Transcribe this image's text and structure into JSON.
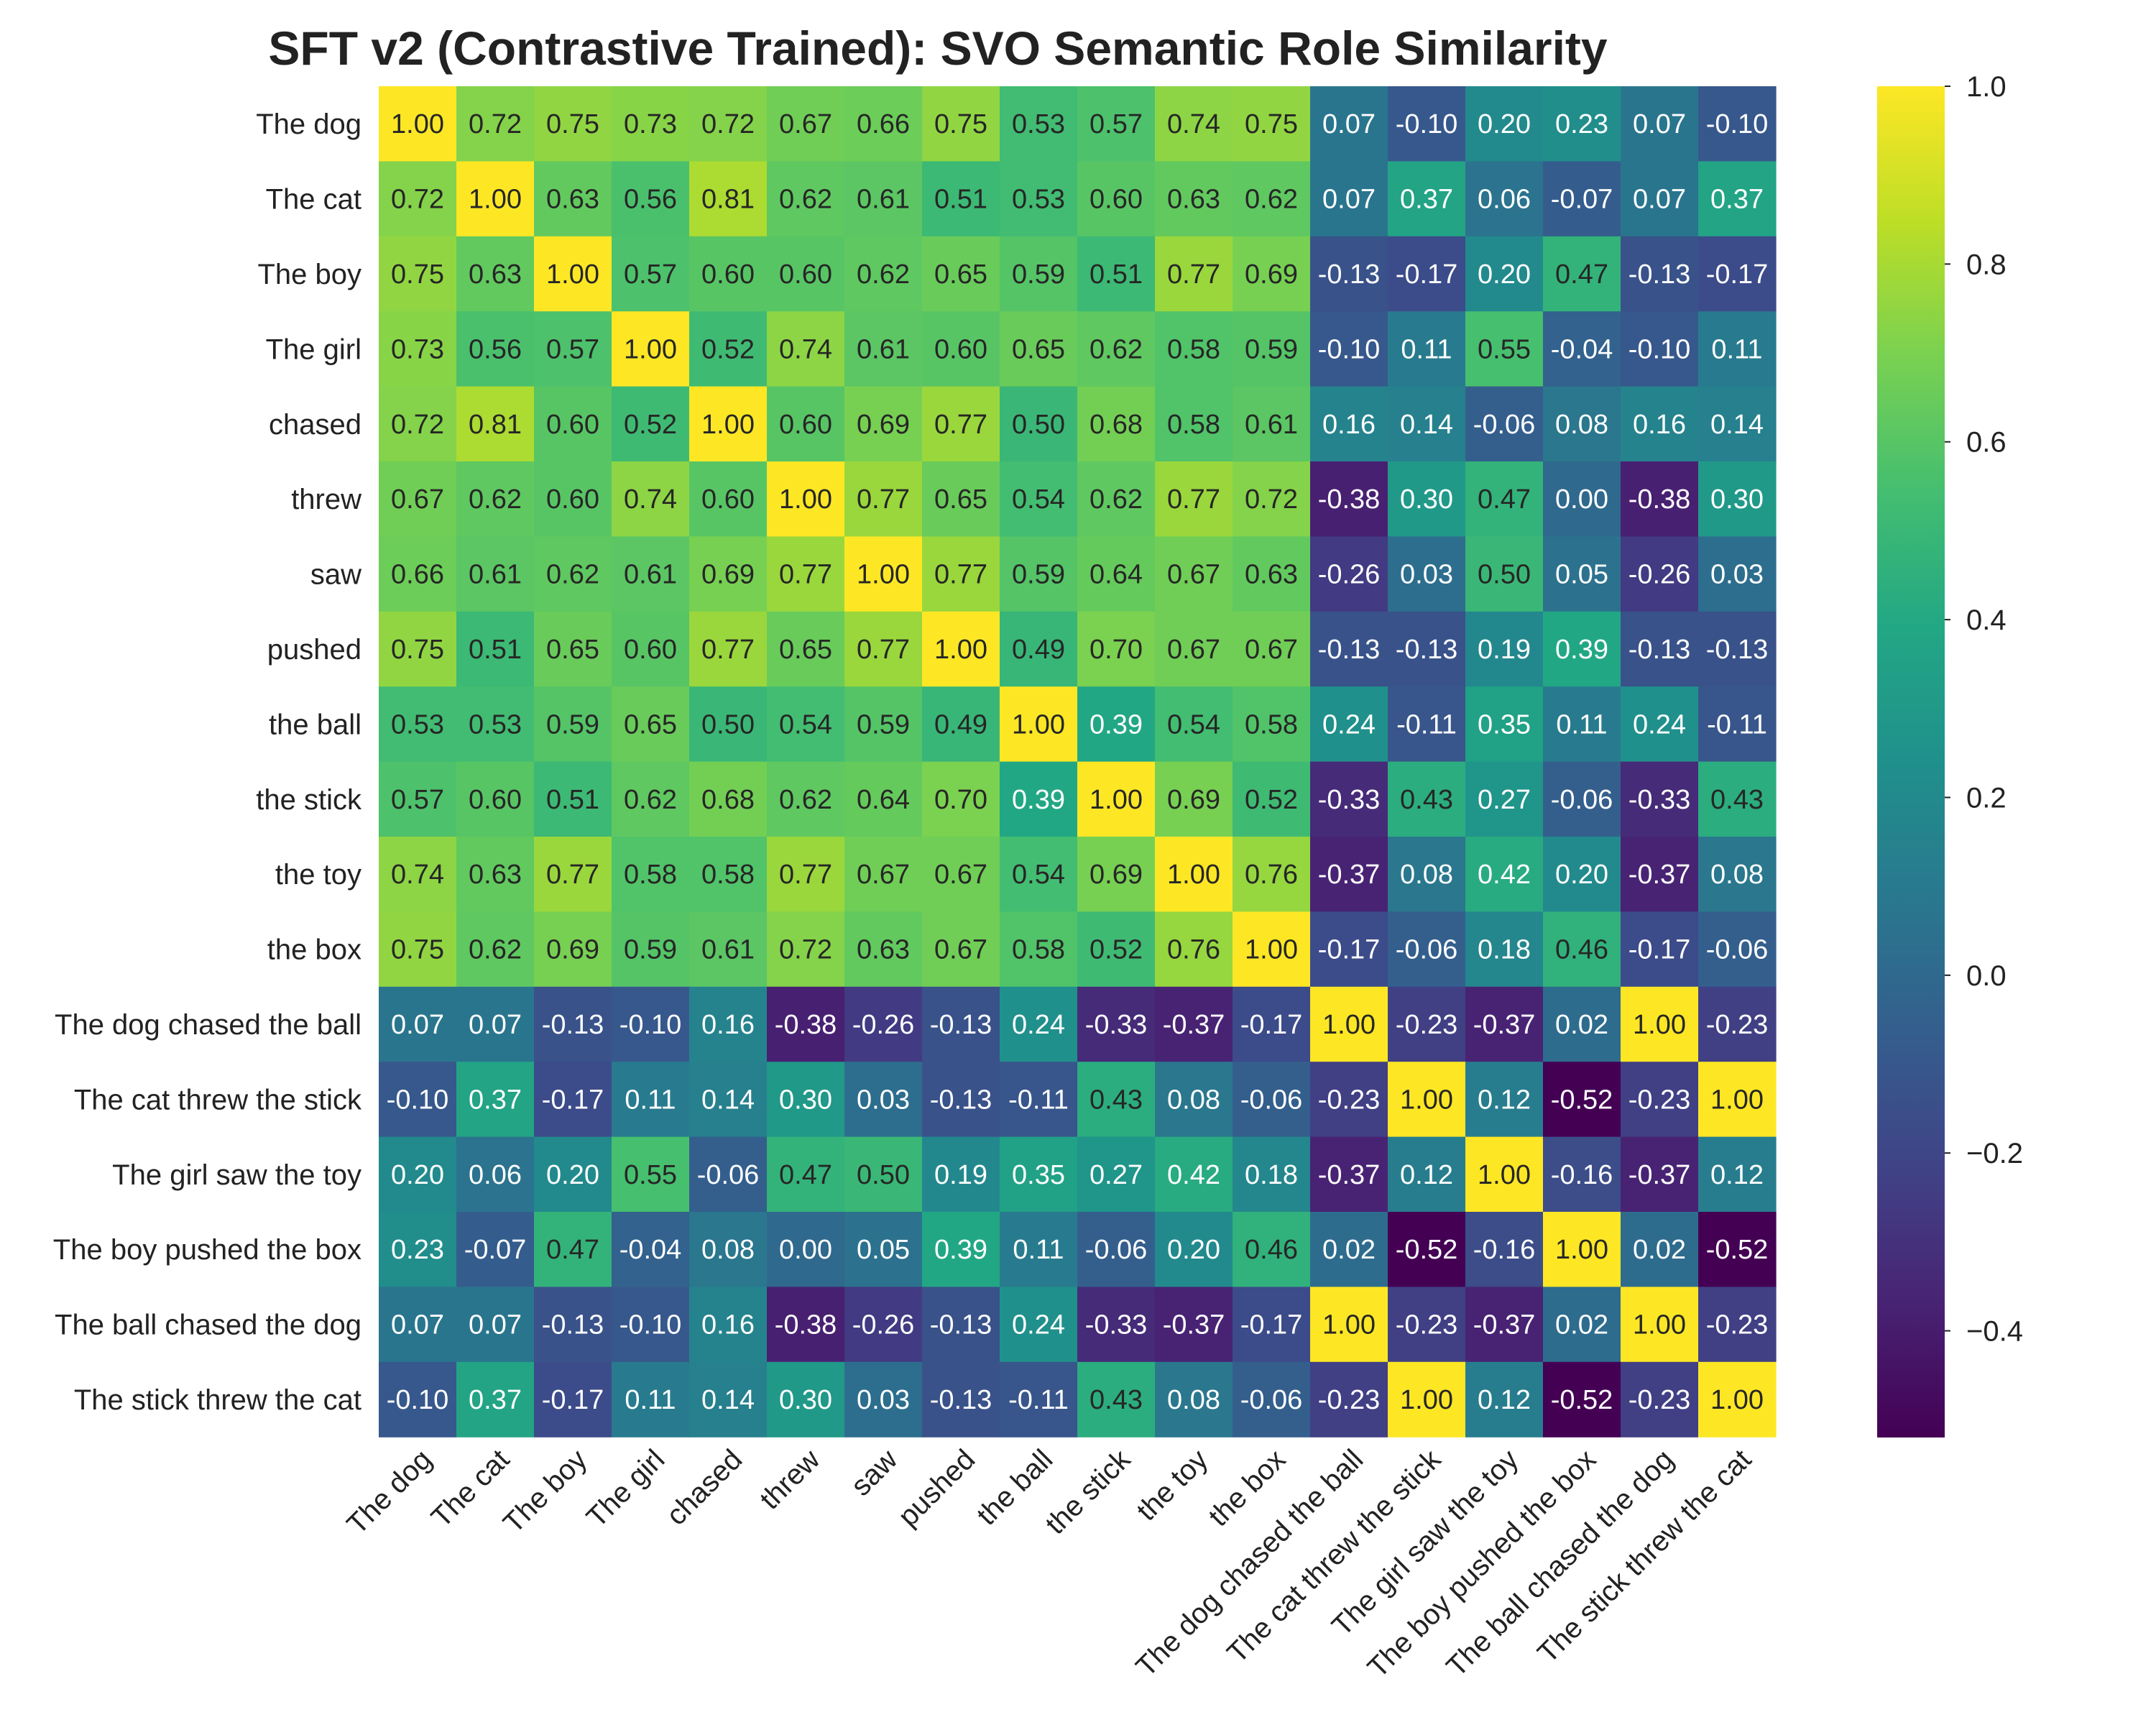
{
  "chart_data": {
    "type": "heatmap",
    "title": "SFT v2 (Contrastive Trained): SVO Semantic Role Similarity",
    "colormap": "viridis",
    "row_labels": [
      "The dog",
      "The cat",
      "The boy",
      "The girl",
      "chased",
      "threw",
      "saw",
      "pushed",
      "the ball",
      "the stick",
      "the toy",
      "the box",
      "The dog chased the ball",
      "The cat threw the stick",
      "The girl saw the toy",
      "The boy pushed the box",
      "The ball chased the dog",
      "The stick threw the cat"
    ],
    "col_labels": [
      "The dog",
      "The cat",
      "The boy",
      "The girl",
      "chased",
      "threw",
      "saw",
      "pushed",
      "the ball",
      "the stick",
      "the toy",
      "the box",
      "The dog chased the ball",
      "The cat threw the stick",
      "The girl saw the toy",
      "The boy pushed the box",
      "The ball chased the dog",
      "The stick threw the cat"
    ],
    "values": [
      [
        1.0,
        0.72,
        0.75,
        0.73,
        0.72,
        0.67,
        0.66,
        0.75,
        0.53,
        0.57,
        0.74,
        0.75,
        0.07,
        -0.1,
        0.2,
        0.23,
        0.07,
        -0.1
      ],
      [
        0.72,
        1.0,
        0.63,
        0.56,
        0.81,
        0.62,
        0.61,
        0.51,
        0.53,
        0.6,
        0.63,
        0.62,
        0.07,
        0.37,
        0.06,
        -0.07,
        0.07,
        0.37
      ],
      [
        0.75,
        0.63,
        1.0,
        0.57,
        0.6,
        0.6,
        0.62,
        0.65,
        0.59,
        0.51,
        0.77,
        0.69,
        -0.13,
        -0.17,
        0.2,
        0.47,
        -0.13,
        -0.17
      ],
      [
        0.73,
        0.56,
        0.57,
        1.0,
        0.52,
        0.74,
        0.61,
        0.6,
        0.65,
        0.62,
        0.58,
        0.59,
        -0.1,
        0.11,
        0.55,
        -0.04,
        -0.1,
        0.11
      ],
      [
        0.72,
        0.81,
        0.6,
        0.52,
        1.0,
        0.6,
        0.69,
        0.77,
        0.5,
        0.68,
        0.58,
        0.61,
        0.16,
        0.14,
        -0.06,
        0.08,
        0.16,
        0.14
      ],
      [
        0.67,
        0.62,
        0.6,
        0.74,
        0.6,
        1.0,
        0.77,
        0.65,
        0.54,
        0.62,
        0.77,
        0.72,
        -0.38,
        0.3,
        0.47,
        0.0,
        -0.38,
        0.3
      ],
      [
        0.66,
        0.61,
        0.62,
        0.61,
        0.69,
        0.77,
        1.0,
        0.77,
        0.59,
        0.64,
        0.67,
        0.63,
        -0.26,
        0.03,
        0.5,
        0.05,
        -0.26,
        0.03
      ],
      [
        0.75,
        0.51,
        0.65,
        0.6,
        0.77,
        0.65,
        0.77,
        1.0,
        0.49,
        0.7,
        0.67,
        0.67,
        -0.13,
        -0.13,
        0.19,
        0.39,
        -0.13,
        -0.13
      ],
      [
        0.53,
        0.53,
        0.59,
        0.65,
        0.5,
        0.54,
        0.59,
        0.49,
        1.0,
        0.39,
        0.54,
        0.58,
        0.24,
        -0.11,
        0.35,
        0.11,
        0.24,
        -0.11
      ],
      [
        0.57,
        0.6,
        0.51,
        0.62,
        0.68,
        0.62,
        0.64,
        0.7,
        0.39,
        1.0,
        0.69,
        0.52,
        -0.33,
        0.43,
        0.27,
        -0.06,
        -0.33,
        0.43
      ],
      [
        0.74,
        0.63,
        0.77,
        0.58,
        0.58,
        0.77,
        0.67,
        0.67,
        0.54,
        0.69,
        1.0,
        0.76,
        -0.37,
        0.08,
        0.42,
        0.2,
        -0.37,
        0.08
      ],
      [
        0.75,
        0.62,
        0.69,
        0.59,
        0.61,
        0.72,
        0.63,
        0.67,
        0.58,
        0.52,
        0.76,
        1.0,
        -0.17,
        -0.06,
        0.18,
        0.46,
        -0.17,
        -0.06
      ],
      [
        0.07,
        0.07,
        -0.13,
        -0.1,
        0.16,
        -0.38,
        -0.26,
        -0.13,
        0.24,
        -0.33,
        -0.37,
        -0.17,
        1.0,
        -0.23,
        -0.37,
        0.02,
        1.0,
        -0.23
      ],
      [
        -0.1,
        0.37,
        -0.17,
        0.11,
        0.14,
        0.3,
        0.03,
        -0.13,
        -0.11,
        0.43,
        0.08,
        -0.06,
        -0.23,
        1.0,
        0.12,
        -0.52,
        -0.23,
        1.0
      ],
      [
        0.2,
        0.06,
        0.2,
        0.55,
        -0.06,
        0.47,
        0.5,
        0.19,
        0.35,
        0.27,
        0.42,
        0.18,
        -0.37,
        0.12,
        1.0,
        -0.16,
        -0.37,
        0.12
      ],
      [
        0.23,
        -0.07,
        0.47,
        -0.04,
        0.08,
        0.0,
        0.05,
        0.39,
        0.11,
        -0.06,
        0.2,
        0.46,
        0.02,
        -0.52,
        -0.16,
        1.0,
        0.02,
        -0.52
      ],
      [
        0.07,
        0.07,
        -0.13,
        -0.1,
        0.16,
        -0.38,
        -0.26,
        -0.13,
        0.24,
        -0.33,
        -0.37,
        -0.17,
        1.0,
        -0.23,
        -0.37,
        0.02,
        1.0,
        -0.23
      ],
      [
        -0.1,
        0.37,
        -0.17,
        0.11,
        0.14,
        0.3,
        0.03,
        -0.13,
        -0.11,
        0.43,
        0.08,
        -0.06,
        -0.23,
        1.0,
        0.12,
        -0.52,
        -0.23,
        1.0
      ]
    ],
    "value_format": "2 decimals",
    "colorbar": {
      "range": [
        -0.52,
        1.0
      ],
      "ticks": [
        1.0,
        0.8,
        0.6,
        0.4,
        0.2,
        0.0,
        -0.2,
        -0.4
      ],
      "tick_labels": [
        "1.0",
        "0.8",
        "0.6",
        "0.4",
        "0.2",
        "0.0",
        "−0.2",
        "−0.4"
      ],
      "placement": "right"
    },
    "legend": "none",
    "grid": false
  }
}
